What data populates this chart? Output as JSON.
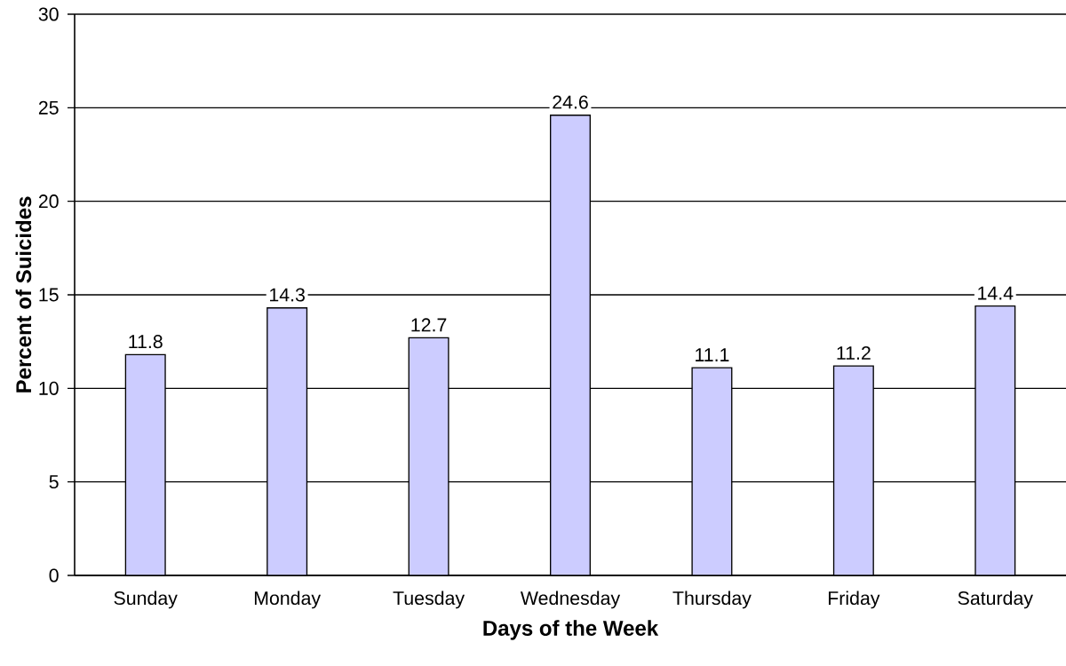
{
  "chart_data": {
    "type": "bar",
    "xlabel": "Days of the Week",
    "ylabel": "Percent of Suicides",
    "categories": [
      "Sunday",
      "Monday",
      "Tuesday",
      "Wednesday",
      "Thursday",
      "Friday",
      "Saturday"
    ],
    "values": [
      11.8,
      14.3,
      12.7,
      24.6,
      11.1,
      11.2,
      14.4
    ],
    "color": "#ccccff",
    "ylim": [
      0,
      30
    ],
    "yticks": [
      0,
      5,
      10,
      15,
      20,
      25,
      30
    ],
    "grid": "y",
    "data_labels": true
  }
}
